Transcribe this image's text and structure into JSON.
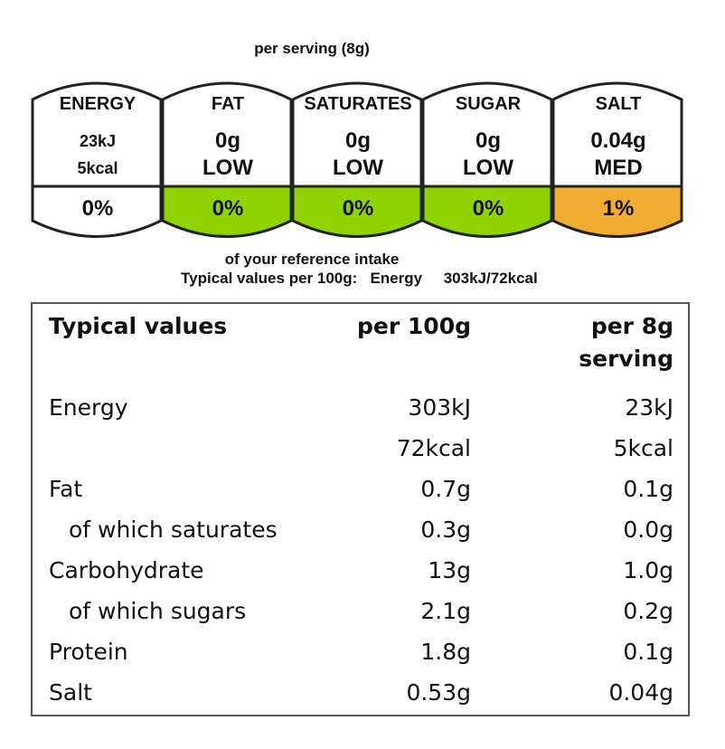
{
  "header": {
    "per_serving": "per serving  (8g)"
  },
  "badges": [
    {
      "name": "ENERGY",
      "line1": "23kJ",
      "line2": "5kcal",
      "percent": "0%",
      "color": "#ffffff"
    },
    {
      "name": "FAT",
      "line1": "0g",
      "line2": "LOW",
      "percent": "0%",
      "color": "#8fd400"
    },
    {
      "name": "SATURATES",
      "line1": "0g",
      "line2": "LOW",
      "percent": "0%",
      "color": "#8fd400"
    },
    {
      "name": "SUGAR",
      "line1": "0g",
      "line2": "LOW",
      "percent": "0%",
      "color": "#8fd400"
    },
    {
      "name": "SALT",
      "line1": "0.04g",
      "line2": "MED",
      "percent": "1%",
      "color": "#f0ad32"
    }
  ],
  "reference": {
    "intake_text": "of your reference intake",
    "typical_label": "Typical values per 100g:",
    "energy_label": "Energy",
    "energy_value": "303kJ/72kcal"
  },
  "table": {
    "headers": {
      "col1": "Typical values",
      "col2": "per 100g",
      "col3_line1": "per 8g",
      "col3_line2": "serving"
    },
    "rows": [
      {
        "label": "Energy",
        "per100": "303kJ",
        "serving": "23kJ"
      },
      {
        "label": "",
        "per100": "72kcal",
        "serving": "5kcal"
      },
      {
        "label": "Fat",
        "per100": "0.7g",
        "serving": "0.1g"
      },
      {
        "label": "of which saturates",
        "per100": "0.3g",
        "serving": "0.0g"
      },
      {
        "label": "Carbohydrate",
        "per100": "13g",
        "serving": "1.0g"
      },
      {
        "label": "of which sugars",
        "per100": "2.1g",
        "serving": "0.2g"
      },
      {
        "label": "Protein",
        "per100": "1.8g",
        "serving": "0.1g"
      },
      {
        "label": "Salt",
        "per100": "0.53g",
        "serving": "0.04g"
      }
    ]
  }
}
